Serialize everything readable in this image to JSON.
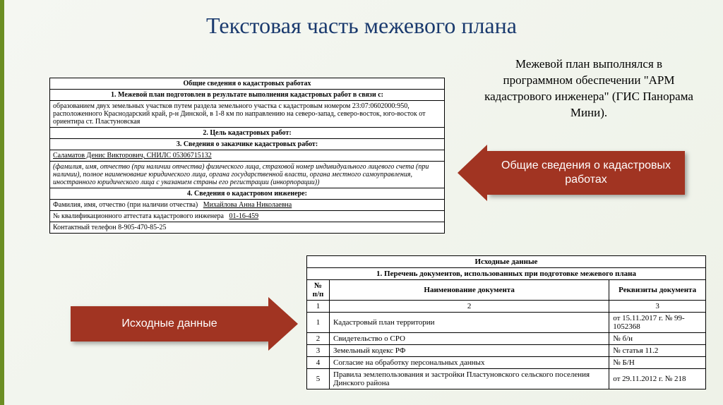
{
  "title": "Текстовая часть межевого плана",
  "intro": "Межевой план выполнялся в программном обеспечении \"АРМ кадастрового инженера\" (ГИС Панорама Мини).",
  "arrow1_label": "Общие сведения о кадастровых работах",
  "arrow2_label": "Исходные данные",
  "form1": {
    "header": "Общие сведения о кадастровых работах",
    "s1": "1. Межевой план подготовлен в результате выполнения кадастровых работ в связи с:",
    "s1_body": "образованием двух земельных участков путем раздела земельного участка с кадастровым номером 23:07:0602000:950, расположенного Краснодарский край, р-н Динской, в 1-8 км по направлению на северо-запад, северо-восток, юго-восток от ориентира ст. Пластуновская",
    "s2": "2. Цель кадастровых работ:",
    "s3": "3. Сведения о заказчике кадастровых работ:",
    "s3_val": "Саламатов Денис Викторович, СНИЛС 05306715132",
    "s3_note": "(фамилия, имя, отчество (при наличии отчества) физического лица, страховой номер индивидуального лицевого счета (при наличии), полное наименование юридического лица, органа государственной власти, органа местного самоуправления, иностранного юридического лица с указанием страны его регистрации (инкорпорации))",
    "s4": "4. Сведения о кадастровом инженере:",
    "s4_fio_lbl": "Фамилия, имя, отчество (при наличии отчества)",
    "s4_fio_val": "Михайлова Анна Николаевна",
    "s4_att_lbl": "№ квалификационного аттестата кадастрового инженера",
    "s4_att_val": "01-16-459",
    "s4_tel": "Контактный телефон 8-905-470-85-25"
  },
  "form2": {
    "header": "Исходные данные",
    "sub": "1. Перечень документов, использованных при подготовке межевого плана",
    "col_np": "№ п/п",
    "col_name": "Наименование документа",
    "col_req": "Реквизиты документа",
    "numrow": [
      "1",
      "2",
      "3"
    ],
    "rows": [
      {
        "n": "1",
        "name": "Кадастровый план территории",
        "req": "от 15.11.2017 г. № 99-1052368"
      },
      {
        "n": "2",
        "name": "Свидетельство о СРО",
        "req": "№ б/н"
      },
      {
        "n": "3",
        "name": "Земельный кодекс РФ",
        "req": "№ статья 11.2"
      },
      {
        "n": "4",
        "name": "Согласие на обработку персональных данных",
        "req": "№ Б/Н"
      },
      {
        "n": "5",
        "name": "Правила землепользования и застройки Пластуновского сельского поселения Динского района",
        "req": "от 29.11.2012 г. № 218"
      }
    ]
  },
  "colors": {
    "arrow": "#a13422",
    "accent": "#6b8e23",
    "title": "#1a3a6e"
  }
}
